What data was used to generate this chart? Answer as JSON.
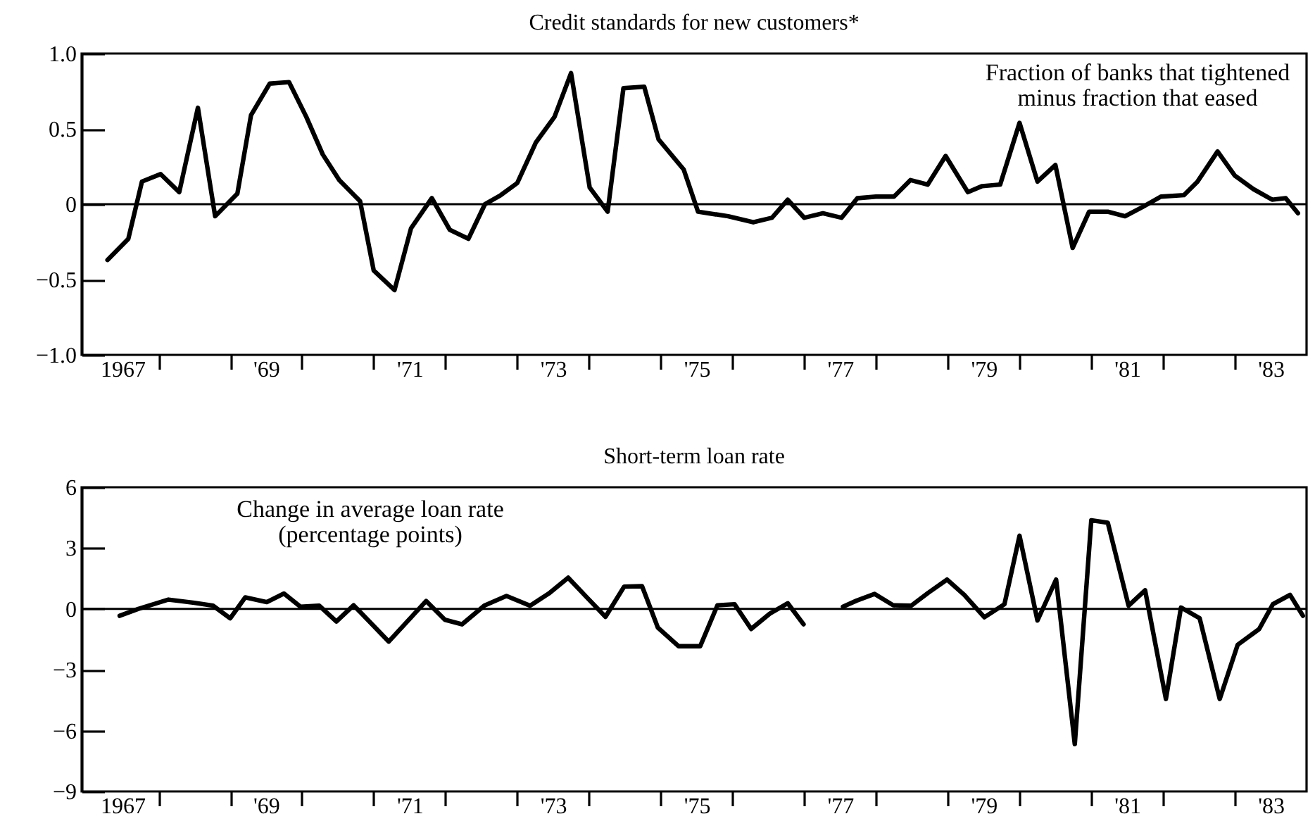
{
  "chart_data": [
    {
      "type": "line",
      "title": "Credit standards for new customers*",
      "annotations": [
        "Fraction of banks that tightened\nminus fraction that eased"
      ],
      "xlim": [
        1966.43,
        1983.5
      ],
      "xticks": [
        {
          "value": 1967,
          "label": "1967"
        },
        {
          "value": 1967.5,
          "label": null
        },
        {
          "value": 1968.5,
          "label": null
        },
        {
          "value": 1969,
          "label": "'69"
        },
        {
          "value": 1969.5,
          "label": null
        },
        {
          "value": 1970.5,
          "label": null
        },
        {
          "value": 1971,
          "label": "'71"
        },
        {
          "value": 1971.5,
          "label": null
        },
        {
          "value": 1972.5,
          "label": null
        },
        {
          "value": 1973,
          "label": "'73"
        },
        {
          "value": 1973.5,
          "label": null
        },
        {
          "value": 1974.5,
          "label": null
        },
        {
          "value": 1975,
          "label": "'75"
        },
        {
          "value": 1975.5,
          "label": null
        },
        {
          "value": 1976.5,
          "label": null
        },
        {
          "value": 1977,
          "label": "'77"
        },
        {
          "value": 1977.5,
          "label": null
        },
        {
          "value": 1978.5,
          "label": null
        },
        {
          "value": 1979,
          "label": "'79"
        },
        {
          "value": 1979.5,
          "label": null
        },
        {
          "value": 1980.5,
          "label": null
        },
        {
          "value": 1981,
          "label": "'81"
        },
        {
          "value": 1981.5,
          "label": null
        },
        {
          "value": 1982.5,
          "label": null
        },
        {
          "value": 1983,
          "label": "'83"
        }
      ],
      "ylim": [
        -1.0,
        1.0
      ],
      "yticks": [
        {
          "value": -1,
          "label": "−1.0"
        },
        {
          "value": -0.5,
          "label": "−0.5"
        },
        0,
        {
          "value": 0.5,
          "label": "0.5"
        },
        {
          "value": 1,
          "label": "1.0"
        }
      ],
      "ref_lines": [
        {
          "axis": "y",
          "value": 0,
          "color": "#000000"
        }
      ],
      "x": [
        1966.79,
        1967.08,
        1967.27,
        1967.53,
        1967.79,
        1968.05,
        1968.29,
        1968.6,
        1968.79,
        1969.05,
        1969.32,
        1969.56,
        1969.79,
        1970.02,
        1970.31,
        1970.5,
        1970.79,
        1971.02,
        1971.31,
        1971.56,
        1971.82,
        1972.05,
        1972.27,
        1972.5,
        1972.76,
        1973.02,
        1973.25,
        1973.51,
        1973.76,
        1973.98,
        1974.27,
        1974.47,
        1974.82,
        1975.02,
        1975.44,
        1975.79,
        1976.05,
        1976.27,
        1976.5,
        1976.76,
        1977.02,
        1977.24,
        1977.5,
        1977.75,
        1977.98,
        1978.22,
        1978.47,
        1978.78,
        1978.98,
        1979.23,
        1979.5,
        1979.75,
        1980.0,
        1980.24,
        1980.47,
        1980.73,
        1980.97,
        1981.21,
        1981.47,
        1981.79,
        1981.98,
        1982.26,
        1982.5,
        1982.76,
        1983.02,
        1983.21,
        1983.38
      ],
      "series": [
        {
          "color": "#000000",
          "values": [
            -0.37,
            -0.23,
            0.15,
            0.2,
            0.08,
            0.64,
            -0.08,
            0.07,
            0.59,
            0.8,
            0.81,
            0.58,
            0.33,
            0.16,
            0.02,
            -0.44,
            -0.57,
            -0.16,
            0.04,
            -0.17,
            -0.23,
            0.0,
            0.06,
            0.14,
            0.41,
            0.58,
            0.87,
            0.11,
            -0.05,
            0.77,
            0.78,
            0.43,
            0.23,
            -0.05,
            -0.08,
            -0.12,
            -0.09,
            0.03,
            -0.09,
            -0.06,
            -0.09,
            0.04,
            0.05,
            0.05,
            0.16,
            0.13,
            0.32,
            0.08,
            0.12,
            0.13,
            0.54,
            0.15,
            0.26,
            -0.29,
            -0.05,
            -0.05,
            -0.08,
            -0.02,
            0.05,
            0.06,
            0.15,
            0.35,
            0.19,
            0.1,
            0.03,
            0.04,
            -0.06
          ]
        }
      ]
    },
    {
      "type": "line",
      "title": "Short-term loan rate",
      "annotations": [
        "Change in average loan rate\n(percentage points)"
      ],
      "xlim": [
        1966.43,
        1983.5
      ],
      "xticks": [
        {
          "value": 1967,
          "label": "1967"
        },
        {
          "value": 1967.5,
          "label": null
        },
        {
          "value": 1968.5,
          "label": null
        },
        {
          "value": 1969,
          "label": "'69"
        },
        {
          "value": 1969.5,
          "label": null
        },
        {
          "value": 1970.5,
          "label": null
        },
        {
          "value": 1971,
          "label": "'71"
        },
        {
          "value": 1971.5,
          "label": null
        },
        {
          "value": 1972.5,
          "label": null
        },
        {
          "value": 1973,
          "label": "'73"
        },
        {
          "value": 1973.5,
          "label": null
        },
        {
          "value": 1974.5,
          "label": null
        },
        {
          "value": 1975,
          "label": "'75"
        },
        {
          "value": 1975.5,
          "label": null
        },
        {
          "value": 1976.5,
          "label": null
        },
        {
          "value": 1977,
          "label": "'77"
        },
        {
          "value": 1977.5,
          "label": null
        },
        {
          "value": 1978.5,
          "label": null
        },
        {
          "value": 1979,
          "label": "'79"
        },
        {
          "value": 1979.5,
          "label": null
        },
        {
          "value": 1980.5,
          "label": null
        },
        {
          "value": 1981,
          "label": "'81"
        },
        {
          "value": 1981.5,
          "label": null
        },
        {
          "value": 1982.5,
          "label": null
        },
        {
          "value": 1983,
          "label": "'83"
        }
      ],
      "ylim": [
        -9,
        6
      ],
      "yticks": [
        {
          "value": -9,
          "label": "−9"
        },
        {
          "value": -6,
          "label": "−6"
        },
        {
          "value": -3,
          "label": "−3"
        },
        0,
        3,
        6
      ],
      "ref_lines": [
        {
          "axis": "y",
          "value": 0,
          "color": "#000000"
        }
      ],
      "x": [
        1966.96,
        1967.22,
        1967.64,
        1968.0,
        1968.26,
        1968.5,
        1968.71,
        1969.01,
        1969.25,
        1969.48,
        1969.74,
        1969.98,
        1970.22,
        1970.71,
        1971.23,
        1971.49,
        1971.73,
        1972.04,
        1972.35,
        1972.68,
        1972.94,
        1973.21,
        1973.47,
        1973.73,
        1973.99,
        1974.24,
        1974.46,
        1974.75,
        1975.05,
        1975.29,
        1975.53,
        1975.76,
        1976.02,
        1976.27,
        1976.49,
        1976.75,
        1977.04,
        1977.23,
        1977.48,
        1977.74,
        1977.99,
        1978.23,
        1978.49,
        1978.73,
        1979.01,
        1979.29,
        1979.5,
        1979.75,
        1980.01,
        1980.27,
        1980.5,
        1980.73,
        1981.02,
        1981.25,
        1981.54,
        1981.75,
        1982.01,
        1982.29,
        1982.54,
        1982.84,
        1983.03,
        1983.27,
        1983.45
      ],
      "series": [
        {
          "color": "#000000",
          "values": [
            -0.34,
            0.0,
            0.46,
            0.3,
            0.16,
            -0.46,
            0.57,
            0.34,
            0.76,
            0.11,
            0.16,
            -0.62,
            0.18,
            -1.61,
            0.39,
            -0.53,
            -0.76,
            0.16,
            0.64,
            0.16,
            0.76,
            1.54,
            0.57,
            -0.39,
            1.1,
            1.12,
            -0.92,
            -1.84,
            -1.84,
            0.18,
            0.23,
            -0.99,
            -0.23,
            0.28,
            -0.76,
            null,
            0.11,
            0.41,
            0.74,
            0.18,
            0.16,
            0.8,
            1.45,
            0.69,
            -0.41,
            0.23,
            3.61,
            -0.57,
            1.45,
            -6.67,
            4.37,
            4.25,
            0.16,
            0.92,
            -4.44,
            0.07,
            -0.46,
            -4.44,
            -1.77,
            -0.99,
            0.23,
            0.69,
            -0.34
          ]
        }
      ]
    }
  ]
}
